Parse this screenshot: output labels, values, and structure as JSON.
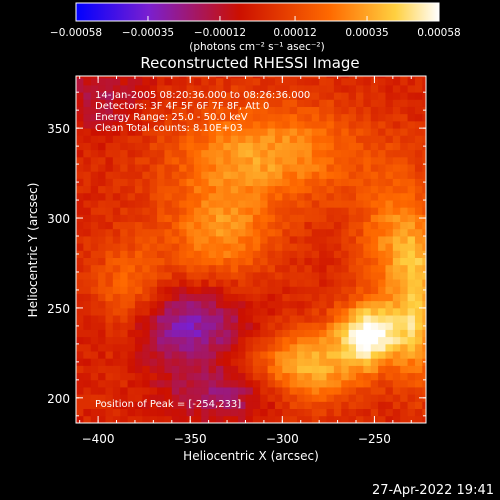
{
  "chart_data": {
    "type": "heatmap",
    "title": "Reconstructed RHESSI Image",
    "xlabel": "Heliocentric X (arcsec)",
    "ylabel": "Heliocentric Y (arcsec)",
    "xlim": [
      -412,
      -222
    ],
    "ylim": [
      186,
      379
    ],
    "x_ticks": [
      -400,
      -350,
      -300,
      -250
    ],
    "y_ticks": [
      200,
      250,
      300,
      350
    ],
    "colorbar": {
      "range": [
        -0.00058,
        0.00058
      ],
      "ticks": [
        "-0.00058",
        "-0.00035",
        "-0.00012",
        "0.00012",
        "0.00035",
        "0.00058"
      ],
      "units_label": "(photons cm⁻² s⁻¹ asec⁻²)",
      "colors": [
        "#0000ff",
        "#7a1fd0",
        "#cc1000",
        "#ff6a00",
        "#ffd040",
        "#ffffff"
      ]
    },
    "annotations": [
      "14-Jan-2005 08:20:36.000 to 08:26:36.000",
      "Detectors: 3F 4F 5F 6F 7F 8F, Att 0",
      "Energy Range: 25.0 - 50.0 keV",
      "Clean     Total counts: 8.10E+03"
    ],
    "peak_label": "Position of Peak = [-254,233]",
    "peak": [
      -254,
      233
    ],
    "features": [
      {
        "x": -310,
        "y": 335,
        "amp": 0.00033,
        "sx": 55,
        "sy": 28
      },
      {
        "x": -335,
        "y": 290,
        "amp": 0.0003,
        "sx": 30,
        "sy": 28
      },
      {
        "x": -385,
        "y": 252,
        "amp": 0.00028,
        "sx": 22,
        "sy": 32
      },
      {
        "x": -254,
        "y": 233,
        "amp": 0.00058,
        "sx": 18,
        "sy": 18
      },
      {
        "x": -290,
        "y": 215,
        "amp": 0.0004,
        "sx": 30,
        "sy": 22
      },
      {
        "x": -240,
        "y": 285,
        "amp": 0.0003,
        "sx": 22,
        "sy": 35
      },
      {
        "x": -228,
        "y": 245,
        "amp": 0.00035,
        "sx": 12,
        "sy": 40
      },
      {
        "x": -360,
        "y": 238,
        "amp": -0.00035,
        "sx": 38,
        "sy": 22
      },
      {
        "x": -330,
        "y": 200,
        "amp": -0.00022,
        "sx": 35,
        "sy": 15
      },
      {
        "x": -400,
        "y": 365,
        "amp": -0.00015,
        "sx": 25,
        "sy": 20
      }
    ]
  },
  "footer": {
    "timestamp": "27-Apr-2022 19:41"
  }
}
